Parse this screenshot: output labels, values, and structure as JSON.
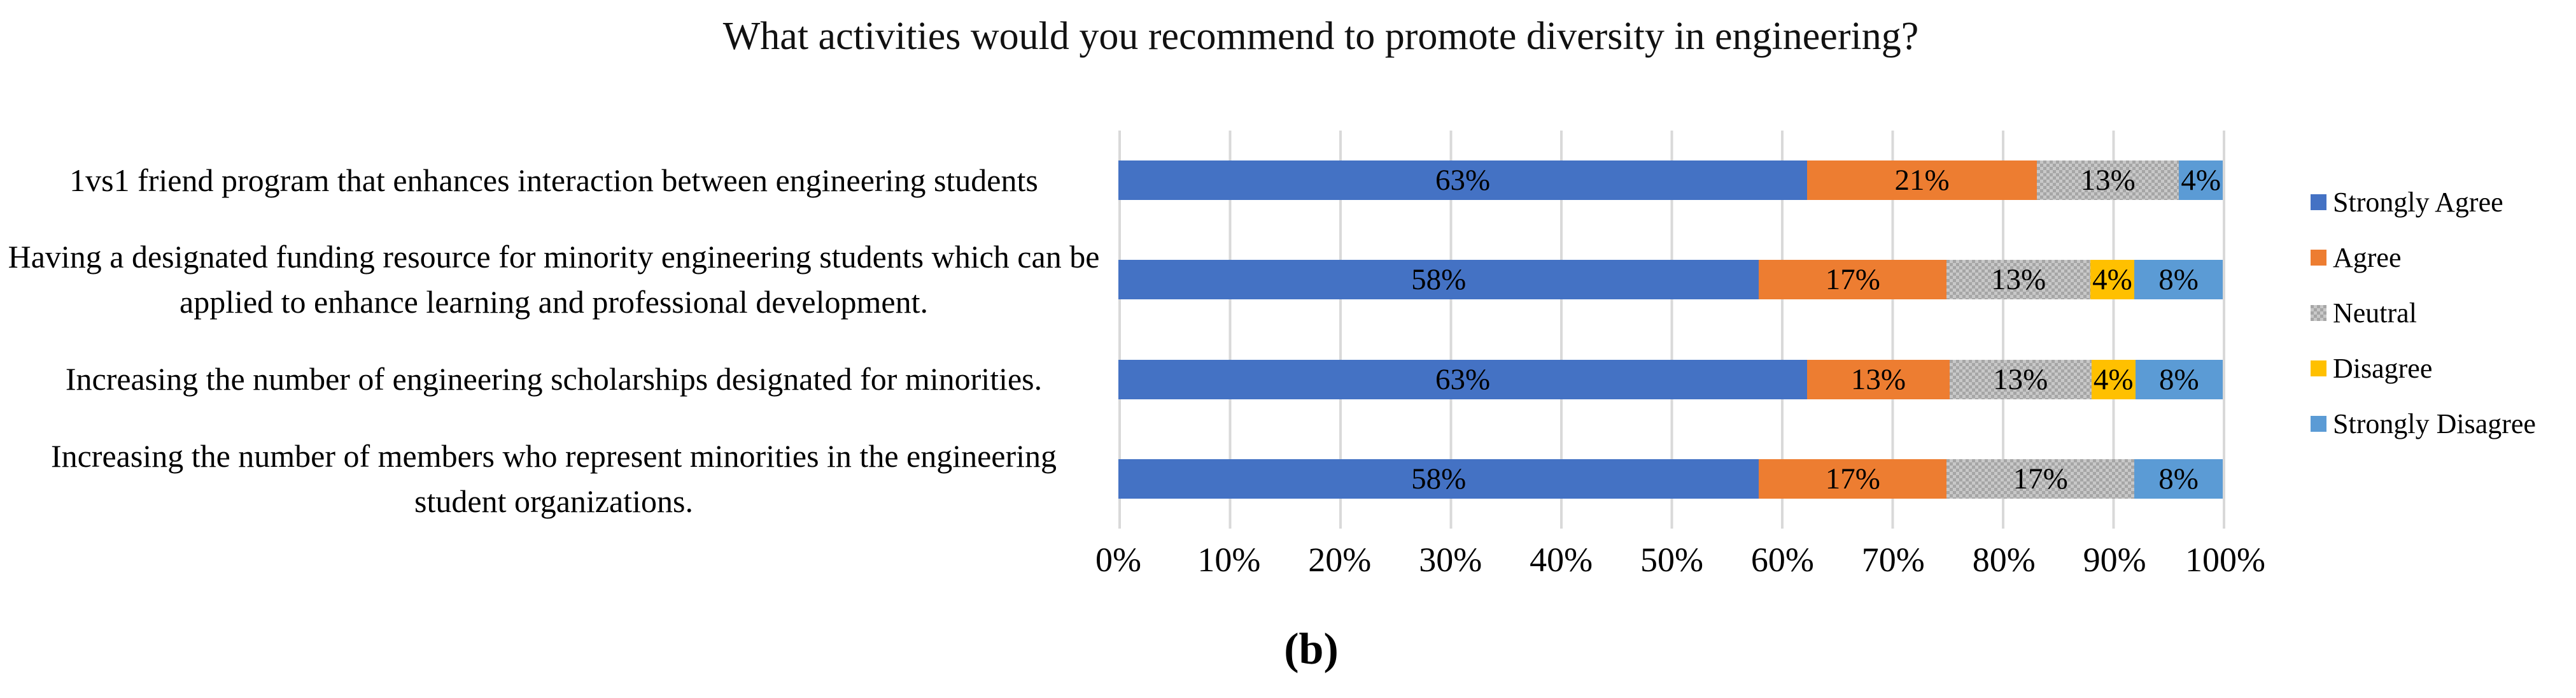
{
  "title": "What activities  would you recommend to promote diversity in engineering?",
  "caption": "(b)",
  "chart_data": {
    "type": "bar",
    "orientation": "horizontal",
    "stacked": true,
    "title": "What activities  would you recommend to promote diversity in engineering?",
    "categories": [
      "1vs1 friend program that enhances interaction between engineering students",
      "Having a designated funding resource for minority engineering students which can be applied to enhance learning and professional development.",
      "Increasing the number of engineering scholarships designated for minorities.",
      "Increasing the number of members who represent minorities in the engineering student organizations."
    ],
    "series": [
      {
        "name": "Strongly Agree",
        "color": "#4472C4",
        "pattern": "solid",
        "values": [
          63,
          58,
          63,
          58
        ]
      },
      {
        "name": "Agree",
        "color": "#ED7D31",
        "pattern": "solid",
        "values": [
          21,
          17,
          13,
          17
        ]
      },
      {
        "name": "Neutral",
        "color": "#A6A6A6",
        "pattern": "checker",
        "values": [
          13,
          13,
          13,
          17
        ]
      },
      {
        "name": "Disagree",
        "color": "#FFC000",
        "pattern": "solid",
        "values": [
          0,
          4,
          4,
          0
        ]
      },
      {
        "name": "Strongly Disagree",
        "color": "#5B9BD5",
        "pattern": "solid",
        "values": [
          4,
          8,
          8,
          8
        ]
      }
    ],
    "value_suffix": "%",
    "x_ticks": [
      "0%",
      "10%",
      "20%",
      "30%",
      "40%",
      "50%",
      "60%",
      "70%",
      "80%",
      "90%",
      "100%"
    ],
    "xlim": [
      0,
      100
    ],
    "grid": "vertical",
    "gridline_color": "#D9D9D9",
    "legend_position": "right",
    "data_label_color": "#000000"
  }
}
